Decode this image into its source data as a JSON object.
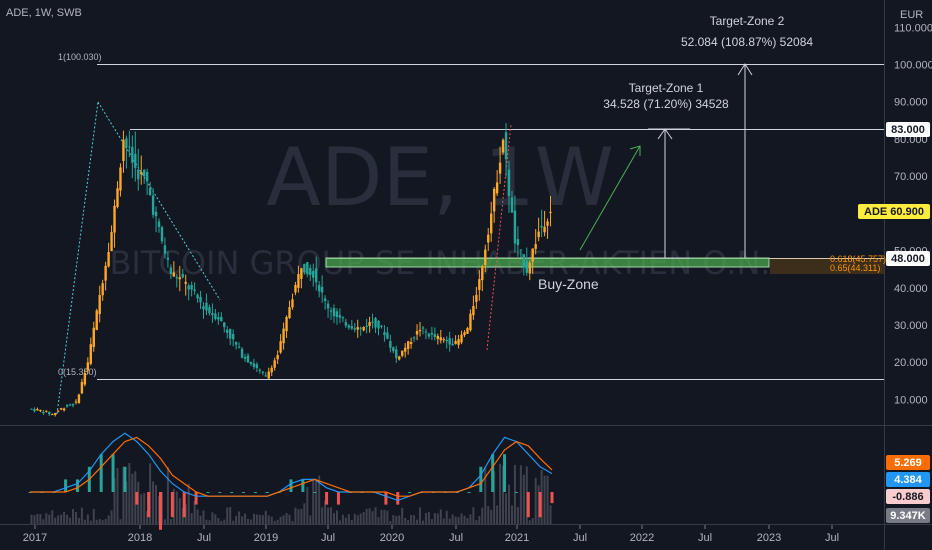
{
  "header": {
    "legend": "ADE, 1W, SWB"
  },
  "watermark": {
    "symbol": "ADE, 1W",
    "name": "BITCOIN GROUP SE INHABER-AKTIEN O.N."
  },
  "price_axis": {
    "currency": "EUR",
    "ticks": [
      "110.000",
      "100.000",
      "90.000",
      "80.000",
      "70.000",
      "60.000",
      "50.000",
      "40.000",
      "30.000",
      "20.000",
      "10.000"
    ],
    "ticks_values": [
      110,
      100,
      90,
      80,
      70,
      60,
      50,
      40,
      30,
      20,
      10
    ]
  },
  "time_axis": {
    "labels": [
      "2017",
      "2018",
      "Jul",
      "2019",
      "Jul",
      "2020",
      "Jul",
      "2021",
      "Jul",
      "2022",
      "Jul",
      "2023",
      "Jul"
    ]
  },
  "tags": {
    "r83": {
      "text": "83.000",
      "bg": "#ffffff",
      "fg": "#131722"
    },
    "last": {
      "text": "ADE  60.900",
      "bg": "#ffeb3b",
      "fg": "#131722"
    },
    "r48": {
      "text": "48.000",
      "bg": "#ffffff",
      "fg": "#131722"
    },
    "ind1": {
      "text": "5.269",
      "bg": "#ff6d00",
      "fg": "#ffffff"
    },
    "ind2": {
      "text": "4.384",
      "bg": "#2196f3",
      "fg": "#ffffff"
    },
    "ind3": {
      "text": "-0.886",
      "bg": "#fccbcd",
      "fg": "#131722"
    },
    "ind4": {
      "text": "9.347K",
      "bg": "#787b86",
      "fg": "#ffffff"
    }
  },
  "annotations": {
    "tz1_title": "Target-Zone 1",
    "tz1_value": "34.528 (71.20%) 34528",
    "tz2_title": "Target-Zone 2",
    "tz2_value": "52.084 (108.87%) 52084",
    "buy_zone": "Buy-Zone",
    "fib_top": "1(100.030)",
    "fib_bottom": "0(15.350)",
    "fib_618": "0.618(45.757)",
    "fib_65": "0.65(44.311)"
  },
  "colors": {
    "background": "#131722",
    "bull": "#ffa726",
    "bear": "#26a69a",
    "buy_zone_fill": "#4caf50",
    "macd": "#2196f3",
    "signal": "#ff6d00",
    "hist_pos": "#26a69a",
    "hist_neg": "#ef5350"
  },
  "chart_data": {
    "type": "line",
    "title": "ADE, 1W, SWB",
    "ylabel": "EUR",
    "ylim": [
      0,
      115
    ],
    "x": [
      "2017-01",
      "2017-03",
      "2017-05",
      "2017-07",
      "2017-09",
      "2017-10",
      "2017-11",
      "2017-12",
      "2018-01",
      "2018-02",
      "2018-03",
      "2018-04",
      "2018-05",
      "2018-06",
      "2018-07",
      "2018-08",
      "2018-09",
      "2018-10",
      "2018-11",
      "2018-12",
      "2019-01",
      "2019-03",
      "2019-05",
      "2019-06",
      "2019-07",
      "2019-08",
      "2019-09",
      "2019-10",
      "2019-12",
      "2020-01",
      "2020-02",
      "2020-03",
      "2020-04",
      "2020-05",
      "2020-06",
      "2020-08",
      "2020-09",
      "2020-10",
      "2020-11",
      "2020-12",
      "2021-01",
      "2021-02",
      "2021-03",
      "2021-04",
      "2021-05"
    ],
    "series": [
      {
        "values": [
          7.5,
          7,
          6,
          8,
          9,
          20,
          38,
          55,
          80,
          72,
          68,
          55,
          44,
          42,
          38,
          34,
          32,
          27,
          22,
          19,
          16,
          22,
          35,
          46,
          44,
          36,
          32,
          30,
          29,
          31,
          28,
          21,
          25,
          29,
          27,
          26,
          25,
          29,
          42,
          60,
          80,
          52,
          45,
          55,
          60.9
        ]
      }
    ],
    "levels": [
      100.03,
      83,
      48,
      15.35
    ],
    "buy_zone": [
      45.76,
      48
    ],
    "targets": [
      {
        "name": "Target-Zone 1",
        "from": 48,
        "to": 83
      },
      {
        "name": "Target-Zone 2",
        "from": 48,
        "to": 100
      }
    ],
    "macd": {
      "macd": [
        0,
        0,
        0,
        1,
        2,
        5,
        9,
        12,
        14,
        12,
        9,
        5,
        2,
        0,
        -1,
        -1,
        -1,
        -1,
        -1,
        -1,
        -1,
        0,
        2,
        3,
        3,
        1,
        0,
        0,
        0,
        0,
        -1,
        -2,
        -1,
        0,
        0,
        0,
        0,
        1,
        4,
        9,
        13,
        12,
        9,
        6,
        4.384
      ],
      "signal": [
        0,
        0,
        0,
        0,
        1,
        3,
        6,
        9,
        12,
        13,
        11,
        8,
        4,
        2,
        0,
        -1,
        -1,
        -1,
        -1,
        -1,
        -1,
        0,
        1,
        2,
        3,
        2,
        1,
        0,
        0,
        0,
        0,
        -1,
        -1,
        0,
        0,
        0,
        0,
        1,
        2,
        6,
        10,
        12,
        11,
        8,
        5.269
      ]
    },
    "last_price": 60.9
  }
}
